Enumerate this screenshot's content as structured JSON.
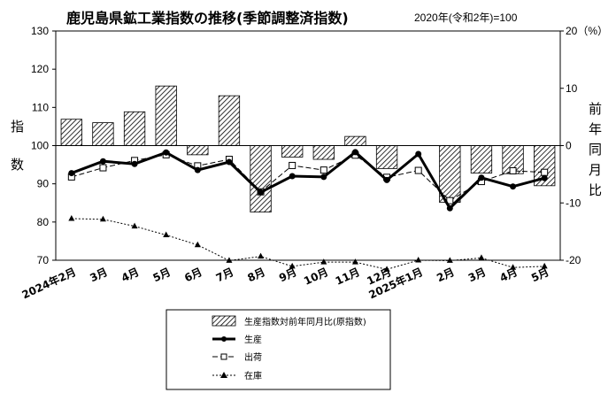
{
  "chart_data": {
    "type": "bar+line",
    "title": "鹿児島県鉱工業指数の推移(季節調整済指数)",
    "subtitle": "2020年(令和2年)=100",
    "categories": [
      "2024年2月",
      "3月",
      "4月",
      "5月",
      "6月",
      "7月",
      "8月",
      "9月",
      "10月",
      "11月",
      "12月",
      "2025年1月",
      "2月",
      "3月",
      "4月",
      "5月"
    ],
    "left_axis": {
      "label": [
        "指",
        "数"
      ],
      "ylim": [
        70,
        130
      ],
      "ticks": [
        70,
        80,
        90,
        100,
        110,
        120,
        130
      ]
    },
    "right_axis": {
      "label": [
        "前",
        "年",
        "同",
        "月",
        "比"
      ],
      "ylim": [
        -20,
        20
      ],
      "ticks": [
        -20,
        -10,
        0,
        10,
        20
      ],
      "tick_labels": [
        "-20",
        "-10",
        "0",
        "10",
        "20（%）"
      ]
    },
    "bar_series": {
      "name": "生産指数対前年同月比(原指数)",
      "axis": "right",
      "values": [
        4.6,
        4.0,
        5.9,
        10.4,
        -1.6,
        8.7,
        -11.6,
        -2.0,
        -2.4,
        1.6,
        -4.0,
        0.0,
        -9.9,
        -4.8,
        -4.9,
        -7.0
      ]
    },
    "line_series": [
      {
        "name": "生産",
        "axis": "left",
        "values": [
          92.8,
          95.9,
          95.2,
          98.2,
          93.6,
          95.7,
          87.8,
          92.0,
          91.8,
          98.3,
          91.0,
          97.8,
          83.6,
          91.6,
          89.3,
          91.5
        ]
      },
      {
        "name": "出荷",
        "axis": "left",
        "values": [
          91.8,
          94.2,
          96.1,
          97.6,
          94.7,
          96.4,
          87.9,
          94.8,
          93.6,
          97.5,
          91.7,
          93.5,
          85.6,
          90.6,
          93.4,
          93.0
        ]
      },
      {
        "name": "在庫",
        "axis": "left",
        "values": [
          80.9,
          80.7,
          78.9,
          76.6,
          74.0,
          69.9,
          71.0,
          68.4,
          69.5,
          69.5,
          67.6,
          70.0,
          69.9,
          70.6,
          68.1,
          68.4
        ]
      }
    ],
    "legend": [
      "生産指数対前年同月比(原指数)",
      "生産",
      "出荷",
      "在庫"
    ],
    "legend_position": "bottom"
  }
}
